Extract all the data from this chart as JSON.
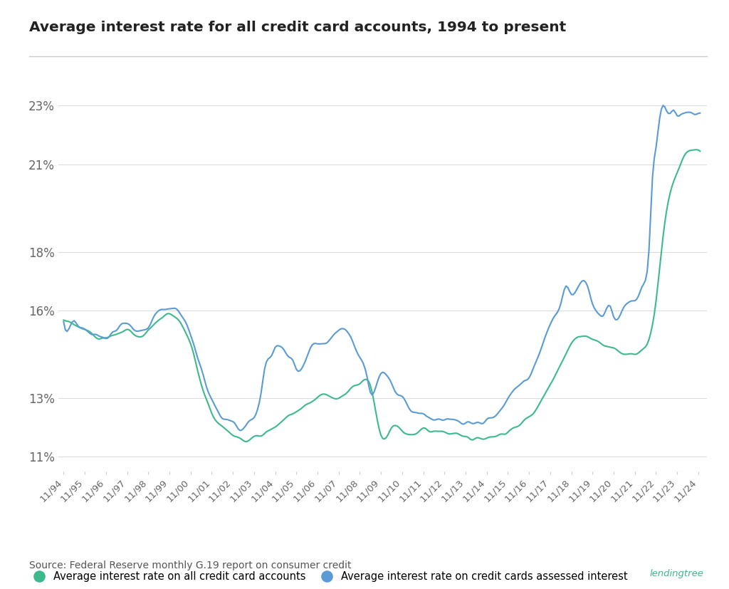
{
  "title": "Average interest rate for all credit card accounts, 1994 to present",
  "source_text": "Source: Federal Reserve monthly G.19 report on consumer credit",
  "legend_green": "Average interest rate on all credit card accounts",
  "legend_blue": "Average interest rate on credit cards assessed interest",
  "green_color": "#3dba8c",
  "blue_color": "#5b9bd5",
  "background_color": "#ffffff",
  "yticks": [
    11,
    13,
    16,
    18,
    21,
    23
  ],
  "ytick_labels": [
    "11%",
    "13%",
    "16%",
    "18%",
    "21%",
    "23%"
  ],
  "ylim": [
    10.5,
    24.2
  ],
  "xtick_labels": [
    "11/94",
    "11/95",
    "11/96",
    "11/97",
    "11/98",
    "11/99",
    "11/00",
    "11/01",
    "11/02",
    "11/03",
    "11/04",
    "11/05",
    "11/06",
    "11/07",
    "11/08",
    "11/09",
    "11/10",
    "11/11",
    "11/12",
    "11/13",
    "11/14",
    "11/15",
    "11/16",
    "11/17",
    "11/18",
    "11/19",
    "11/20",
    "11/21",
    "11/22",
    "11/23",
    "11/24"
  ],
  "n_years": 31,
  "months_per_year": 12
}
